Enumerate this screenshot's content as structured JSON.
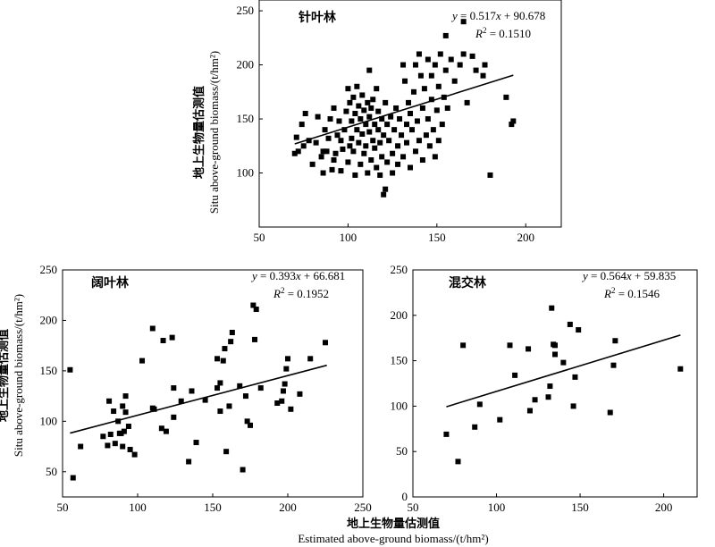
{
  "shared": {
    "ylabel_cn": "地上生物量估测值",
    "ylabel_en": "Situ above-ground biomass/(t/hm²)",
    "xlabel_cn": "地上生物量估测值",
    "xlabel_en": "Estimated above-ground biomass/(t/hm²)"
  },
  "chart_data": [
    {
      "type": "scatter",
      "title": "针叶林",
      "xlim": [
        50,
        220
      ],
      "ylim": [
        50,
        260
      ],
      "xticks": [
        "50",
        "100",
        "150",
        "200"
      ],
      "yticks": [
        "100",
        "150",
        "200",
        "250"
      ],
      "equation_lhs": "y",
      "equation_coef": "0.517",
      "equation_var": "x",
      "equation_rest": " + 90.678",
      "r2_value": "0.1510",
      "fit": {
        "slope": 0.517,
        "intercept": 90.678,
        "x_range": [
          70,
          193
        ]
      },
      "points": [
        [
          70,
          118
        ],
        [
          71,
          133
        ],
        [
          72,
          120
        ],
        [
          74,
          145
        ],
        [
          75,
          125
        ],
        [
          76,
          155
        ],
        [
          78,
          130
        ],
        [
          80,
          108
        ],
        [
          82,
          128
        ],
        [
          83,
          152
        ],
        [
          85,
          115
        ],
        [
          86,
          100
        ],
        [
          87,
          140
        ],
        [
          88,
          120
        ],
        [
          89,
          132
        ],
        [
          90,
          150
        ],
        [
          91,
          103
        ],
        [
          92,
          160
        ],
        [
          93,
          118
        ],
        [
          94,
          135
        ],
        [
          95,
          148
        ],
        [
          96,
          102
        ],
        [
          97,
          122
        ],
        [
          98,
          140
        ],
        [
          99,
          157
        ],
        [
          100,
          178
        ],
        [
          100,
          110
        ],
        [
          101,
          165
        ],
        [
          102,
          132
        ],
        [
          102,
          148
        ],
        [
          103,
          120
        ],
        [
          103,
          170
        ],
        [
          104,
          98
        ],
        [
          104,
          155
        ],
        [
          105,
          180
        ],
        [
          105,
          140
        ],
        [
          106,
          128
        ],
        [
          106,
          162
        ],
        [
          107,
          150
        ],
        [
          107,
          108
        ],
        [
          108,
          172
        ],
        [
          108,
          136
        ],
        [
          109,
          158
        ],
        [
          109,
          118
        ],
        [
          110,
          145
        ],
        [
          110,
          125
        ],
        [
          111,
          165
        ],
        [
          111,
          100
        ],
        [
          112,
          152
        ],
        [
          112,
          138
        ],
        [
          113,
          160
        ],
        [
          113,
          112
        ],
        [
          114,
          130
        ],
        [
          114,
          168
        ],
        [
          115,
          145
        ],
        [
          115,
          123
        ],
        [
          116,
          178
        ],
        [
          116,
          105
        ],
        [
          117,
          140
        ],
        [
          117,
          157
        ],
        [
          118,
          98
        ],
        [
          118,
          128
        ],
        [
          119,
          150
        ],
        [
          119,
          115
        ],
        [
          120,
          80
        ],
        [
          120,
          135
        ],
        [
          121,
          85
        ],
        [
          121,
          165
        ],
        [
          122,
          110
        ],
        [
          122,
          145
        ],
        [
          123,
          130
        ],
        [
          124,
          152
        ],
        [
          125,
          118
        ],
        [
          125,
          100
        ],
        [
          126,
          140
        ],
        [
          127,
          160
        ],
        [
          128,
          125
        ],
        [
          128,
          108
        ],
        [
          129,
          150
        ],
        [
          130,
          135
        ],
        [
          131,
          200
        ],
        [
          131,
          115
        ],
        [
          132,
          185
        ],
        [
          133,
          145
        ],
        [
          133,
          128
        ],
        [
          134,
          165
        ],
        [
          135,
          105
        ],
        [
          135,
          155
        ],
        [
          136,
          140
        ],
        [
          137,
          175
        ],
        [
          138,
          120
        ],
        [
          138,
          200
        ],
        [
          139,
          148
        ],
        [
          140,
          210
        ],
        [
          140,
          130
        ],
        [
          141,
          190
        ],
        [
          142,
          160
        ],
        [
          142,
          112
        ],
        [
          143,
          178
        ],
        [
          144,
          135
        ],
        [
          145,
          205
        ],
        [
          145,
          150
        ],
        [
          146,
          125
        ],
        [
          147,
          190
        ],
        [
          147,
          168
        ],
        [
          148,
          140
        ],
        [
          149,
          200
        ],
        [
          149,
          115
        ],
        [
          150,
          158
        ],
        [
          151,
          180
        ],
        [
          151,
          130
        ],
        [
          152,
          210
        ],
        [
          153,
          145
        ],
        [
          154,
          170
        ],
        [
          155,
          227
        ],
        [
          155,
          195
        ],
        [
          156,
          160
        ],
        [
          158,
          205
        ],
        [
          160,
          185
        ],
        [
          163,
          200
        ],
        [
          165,
          240
        ],
        [
          165,
          210
        ],
        [
          167,
          165
        ],
        [
          170,
          208
        ],
        [
          172,
          195
        ],
        [
          176,
          190
        ],
        [
          177,
          200
        ],
        [
          180,
          98
        ],
        [
          189,
          170
        ],
        [
          192,
          145
        ],
        [
          193,
          148
        ],
        [
          86,
          120
        ],
        [
          92,
          112
        ],
        [
          96,
          130
        ],
        [
          101,
          125
        ],
        [
          112,
          195
        ]
      ]
    },
    {
      "type": "scatter",
      "title": "阔叶林",
      "xlim": [
        50,
        250
      ],
      "ylim": [
        25,
        250
      ],
      "xticks": [
        "50",
        "100",
        "150",
        "200",
        "250"
      ],
      "yticks": [
        "50",
        "100",
        "150",
        "200",
        "250"
      ],
      "equation_lhs": "y",
      "equation_coef": "0.393",
      "equation_var": "x",
      "equation_rest": " + 66.681",
      "r2_value": "0.1952",
      "fit": {
        "slope": 0.393,
        "intercept": 66.681,
        "x_range": [
          55,
          226
        ]
      },
      "points": [
        [
          55,
          151
        ],
        [
          57,
          44
        ],
        [
          62,
          75
        ],
        [
          77,
          85
        ],
        [
          80,
          76
        ],
        [
          81,
          120
        ],
        [
          82,
          87
        ],
        [
          84,
          110
        ],
        [
          85,
          78
        ],
        [
          87,
          100
        ],
        [
          88,
          88
        ],
        [
          89,
          88
        ],
        [
          90,
          75
        ],
        [
          90,
          115
        ],
        [
          91,
          90
        ],
        [
          92,
          109
        ],
        [
          92,
          125
        ],
        [
          94,
          95
        ],
        [
          95,
          72
        ],
        [
          98,
          67
        ],
        [
          103,
          160
        ],
        [
          110,
          192
        ],
        [
          110,
          113
        ],
        [
          111,
          112
        ],
        [
          116,
          93
        ],
        [
          117,
          180
        ],
        [
          119,
          90
        ],
        [
          123,
          183
        ],
        [
          124,
          104
        ],
        [
          124,
          133
        ],
        [
          129,
          120
        ],
        [
          134,
          60
        ],
        [
          136,
          130
        ],
        [
          139,
          79
        ],
        [
          145,
          121
        ],
        [
          153,
          133
        ],
        [
          153,
          162
        ],
        [
          155,
          138
        ],
        [
          155,
          110
        ],
        [
          157,
          160
        ],
        [
          158,
          172
        ],
        [
          159,
          70
        ],
        [
          161,
          115
        ],
        [
          162,
          179
        ],
        [
          163,
          188
        ],
        [
          168,
          135
        ],
        [
          170,
          52
        ],
        [
          172,
          125
        ],
        [
          173,
          100
        ],
        [
          175,
          96
        ],
        [
          177,
          215
        ],
        [
          178,
          181
        ],
        [
          179,
          211
        ],
        [
          182,
          133
        ],
        [
          193,
          118
        ],
        [
          196,
          120
        ],
        [
          197,
          130
        ],
        [
          198,
          137
        ],
        [
          199,
          152
        ],
        [
          200,
          162
        ],
        [
          202,
          112
        ],
        [
          208,
          127
        ],
        [
          215,
          162
        ],
        [
          225,
          178
        ]
      ]
    },
    {
      "type": "scatter",
      "title": "混交林",
      "xlim": [
        50,
        220
      ],
      "ylim": [
        0,
        250
      ],
      "xticks": [
        "50",
        "100",
        "150",
        "200"
      ],
      "yticks": [
        "0",
        "50",
        "100",
        "150",
        "200",
        "250"
      ],
      "equation_lhs": "y",
      "equation_coef": "0.564",
      "equation_var": "x",
      "equation_rest": " + 59.835",
      "r2_value": "0.1546",
      "fit": {
        "slope": 0.564,
        "intercept": 59.835,
        "x_range": [
          70,
          210
        ]
      },
      "points": [
        [
          70,
          69
        ],
        [
          77,
          39
        ],
        [
          80,
          167
        ],
        [
          87,
          77
        ],
        [
          90,
          102
        ],
        [
          102,
          85
        ],
        [
          108,
          167
        ],
        [
          111,
          134
        ],
        [
          119,
          163
        ],
        [
          120,
          95
        ],
        [
          123,
          107
        ],
        [
          131,
          110
        ],
        [
          132,
          122
        ],
        [
          133,
          208
        ],
        [
          134,
          168
        ],
        [
          135,
          157
        ],
        [
          135,
          167
        ],
        [
          140,
          148
        ],
        [
          144,
          190
        ],
        [
          146,
          100
        ],
        [
          147,
          132
        ],
        [
          149,
          184
        ],
        [
          168,
          93
        ],
        [
          170,
          145
        ],
        [
          171,
          172
        ],
        [
          210,
          141
        ]
      ]
    }
  ]
}
